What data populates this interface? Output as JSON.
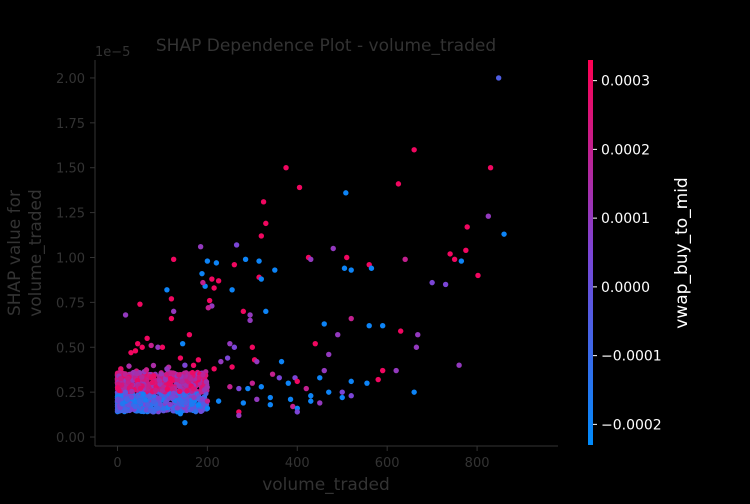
{
  "chart_data": {
    "type": "scatter",
    "title": "SHAP Dependence Plot - volume_traded",
    "xlabel": "volume_traded",
    "ylabel_lines": [
      "SHAP value for",
      "volume_traded"
    ],
    "y_offset_label": "1e−5",
    "x_ticks": [
      "0",
      "200",
      "400",
      "600",
      "800"
    ],
    "x_tick_values": [
      0,
      200,
      400,
      600,
      800
    ],
    "y_ticks": [
      "0.00",
      "0.25",
      "0.50",
      "0.75",
      "1.00",
      "1.25",
      "1.50",
      "1.75",
      "2.00"
    ],
    "y_tick_values": [
      0,
      0.25,
      0.5,
      0.75,
      1.0,
      1.25,
      1.5,
      1.75,
      2.0
    ],
    "xlim": [
      -50,
      980
    ],
    "ylim": [
      -0.05,
      2.1
    ],
    "colorbar": {
      "label": "vwap_buy_to_mid",
      "ticks": [
        "0.0003",
        "0.0002",
        "0.0001",
        "0.0000",
        "−0.0001",
        "−0.0002"
      ],
      "tick_values": [
        0.0003,
        0.0002,
        0.0001,
        0.0,
        -0.0001,
        -0.0002
      ],
      "range": [
        -0.00023,
        0.00033
      ],
      "low_color": "#008bfb",
      "high_color": "#ff0052"
    },
    "points_scale_note": "x in volume_traded units, y in units of 1e-5, c = vwap_buy_to_mid",
    "points": [
      [
        848,
        2.0,
        -5e-05
      ],
      [
        660,
        1.6,
        0.0003
      ],
      [
        830,
        1.5,
        0.0003
      ],
      [
        375,
        1.5,
        0.0003
      ],
      [
        625,
        1.41,
        0.0003
      ],
      [
        405,
        1.39,
        0.0003
      ],
      [
        508,
        1.36,
        -0.0002
      ],
      [
        325,
        1.31,
        0.0003
      ],
      [
        825,
        1.23,
        0.0001
      ],
      [
        330,
        1.19,
        0.0003
      ],
      [
        778,
        1.17,
        0.0003
      ],
      [
        320,
        1.12,
        0.0003
      ],
      [
        860,
        1.13,
        -0.0002
      ],
      [
        775,
        1.04,
        0.0003
      ],
      [
        740,
        1.02,
        0.0003
      ],
      [
        480,
        1.05,
        0.0001
      ],
      [
        265,
        1.07,
        5e-05
      ],
      [
        185,
        1.06,
        0.0001
      ],
      [
        425,
        1.0,
        0.0003
      ],
      [
        430,
        0.99,
        0.0001
      ],
      [
        510,
        1.0,
        0.0003
      ],
      [
        750,
        0.99,
        0.0003
      ],
      [
        765,
        0.98,
        -0.0002
      ],
      [
        285,
        0.99,
        -0.0002
      ],
      [
        315,
        0.98,
        -0.0002
      ],
      [
        220,
        0.97,
        -0.0002
      ],
      [
        640,
        0.99,
        0.0002
      ],
      [
        125,
        0.99,
        0.0003
      ],
      [
        200,
        0.98,
        -0.0002
      ],
      [
        560,
        0.96,
        0.0003
      ],
      [
        260,
        0.96,
        0.0003
      ],
      [
        505,
        0.94,
        -0.0002
      ],
      [
        520,
        0.93,
        -0.0002
      ],
      [
        565,
        0.94,
        -0.0002
      ],
      [
        350,
        0.93,
        -0.0002
      ],
      [
        188,
        0.91,
        -0.0002
      ],
      [
        802,
        0.9,
        0.0003
      ],
      [
        315,
        0.89,
        0.0003
      ],
      [
        225,
        0.87,
        0.0003
      ],
      [
        210,
        0.88,
        0.0003
      ],
      [
        320,
        0.88,
        -0.0002
      ],
      [
        700,
        0.86,
        5e-05
      ],
      [
        730,
        0.85,
        5e-05
      ],
      [
        195,
        0.84,
        -0.0002
      ],
      [
        215,
        0.83,
        0.0003
      ],
      [
        110,
        0.82,
        -0.0002
      ],
      [
        255,
        0.82,
        -0.0002
      ],
      [
        190,
        0.86,
        0.0002
      ],
      [
        120,
        0.77,
        0.0003
      ],
      [
        205,
        0.76,
        0.0003
      ],
      [
        50,
        0.74,
        0.0003
      ],
      [
        210,
        0.73,
        0.0001
      ],
      [
        202,
        0.72,
        0.0002
      ],
      [
        330,
        0.7,
        -0.0002
      ],
      [
        280,
        0.7,
        0.0003
      ],
      [
        125,
        0.7,
        0.0001
      ],
      [
        18,
        0.68,
        0.0001
      ],
      [
        295,
        0.68,
        0.0001
      ],
      [
        295,
        0.65,
        0.0001
      ],
      [
        520,
        0.66,
        0.0002
      ],
      [
        120,
        0.66,
        0.0003
      ],
      [
        460,
        0.63,
        -0.0002
      ],
      [
        560,
        0.62,
        -0.0002
      ],
      [
        590,
        0.62,
        -0.0002
      ],
      [
        630,
        0.59,
        0.0003
      ],
      [
        668,
        0.57,
        0.0001
      ],
      [
        160,
        0.57,
        0.0003
      ],
      [
        490,
        0.57,
        0.0001
      ],
      [
        66,
        0.55,
        0.0003
      ],
      [
        45,
        0.52,
        0.0003
      ],
      [
        55,
        0.5,
        0.0003
      ],
      [
        75,
        0.51,
        0.0002
      ],
      [
        145,
        0.52,
        -0.0002
      ],
      [
        260,
        0.5,
        5e-05
      ],
      [
        440,
        0.52,
        0.0003
      ],
      [
        300,
        0.5,
        0.0003
      ],
      [
        665,
        0.5,
        0.0001
      ],
      [
        250,
        0.52,
        0.0001
      ],
      [
        90,
        0.5,
        0.0001
      ],
      [
        100,
        0.5,
        0.0003
      ],
      [
        30,
        0.47,
        0.0003
      ],
      [
        40,
        0.48,
        0.0003
      ],
      [
        140,
        0.44,
        0.0003
      ],
      [
        180,
        0.43,
        0.0003
      ],
      [
        230,
        0.42,
        0.0001
      ],
      [
        245,
        0.44,
        5e-05
      ],
      [
        305,
        0.43,
        0.0003
      ],
      [
        310,
        0.42,
        0.0001
      ],
      [
        365,
        0.42,
        -0.0002
      ],
      [
        470,
        0.46,
        0.0001
      ],
      [
        760,
        0.4,
        0.0001
      ],
      [
        150,
        0.4,
        5e-05
      ],
      [
        110,
        0.38,
        0.0001
      ],
      [
        215,
        0.38,
        0.0003
      ],
      [
        255,
        0.39,
        0.0003
      ],
      [
        590,
        0.37,
        0.0003
      ],
      [
        620,
        0.37,
        0.0001
      ],
      [
        460,
        0.37,
        0.0001
      ],
      [
        580,
        0.32,
        0.0003
      ],
      [
        345,
        0.35,
        0.0002
      ],
      [
        395,
        0.33,
        5e-05
      ],
      [
        360,
        0.33,
        5e-05
      ],
      [
        400,
        0.31,
        0.0003
      ],
      [
        450,
        0.33,
        -0.0002
      ],
      [
        520,
        0.31,
        -0.0002
      ],
      [
        555,
        0.3,
        -0.0002
      ],
      [
        300,
        0.3,
        0.0002
      ],
      [
        320,
        0.28,
        -0.0002
      ],
      [
        270,
        0.27,
        5e-05
      ],
      [
        250,
        0.28,
        0.0002
      ],
      [
        290,
        0.27,
        -0.0002
      ],
      [
        380,
        0.3,
        -0.0002
      ],
      [
        420,
        0.27,
        0.0002
      ],
      [
        470,
        0.25,
        -0.0002
      ],
      [
        500,
        0.25,
        5e-05
      ],
      [
        660,
        0.25,
        -0.0002
      ],
      [
        520,
        0.23,
        5e-05
      ],
      [
        430,
        0.23,
        -0.0002
      ],
      [
        385,
        0.21,
        -0.0002
      ],
      [
        340,
        0.22,
        -0.0002
      ],
      [
        310,
        0.21,
        0.0001
      ],
      [
        280,
        0.19,
        -0.0002
      ],
      [
        340,
        0.18,
        -0.0002
      ],
      [
        390,
        0.17,
        0.0002
      ],
      [
        400,
        0.16,
        -0.0002
      ],
      [
        430,
        0.2,
        -0.0002
      ],
      [
        450,
        0.19,
        0.0001
      ],
      [
        500,
        0.22,
        -0.0002
      ],
      [
        400,
        0.14,
        5e-05
      ],
      [
        270,
        0.14,
        0.0003
      ],
      [
        200,
        0.16,
        -0.0002
      ],
      [
        140,
        0.13,
        -0.0002
      ],
      [
        150,
        0.08,
        -0.0002
      ],
      [
        270,
        0.12,
        0.0001
      ],
      [
        225,
        0.2,
        -0.0002
      ],
      [
        200,
        0.2,
        0.0002
      ],
      [
        180,
        0.18,
        -0.0002
      ],
      [
        170,
        0.22,
        0.0001
      ]
    ]
  }
}
